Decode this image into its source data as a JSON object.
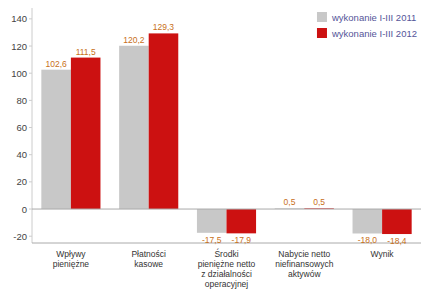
{
  "chart_data": {
    "type": "bar",
    "categories": [
      "Wpływy\npieniężne",
      "Płatności\nkasowe",
      "Środki\npieniężne netto\nz działalności\noperacyjnej",
      "Nabycie netto\nniefinansowych\naktywów",
      "Wynik"
    ],
    "series": [
      {
        "name": "wykonanie I-III 2011",
        "color": "#c8c8c8",
        "values": [
          102.6,
          120.2,
          -17.5,
          0.5,
          -18.0
        ],
        "value_labels": [
          "102,6",
          "120,2",
          "-17,5",
          "0,5",
          "-18,0"
        ]
      },
      {
        "name": "wykonanie I-III 2012",
        "color": "#cc1111",
        "values": [
          111.5,
          129.3,
          -17.9,
          0.5,
          -18.4
        ],
        "value_labels": [
          "111,5",
          "129,3",
          "-17,9",
          "0,5",
          "-18,4"
        ]
      }
    ],
    "ylim": [
      -25,
      148
    ],
    "yticks": [
      -20,
      0,
      20,
      40,
      60,
      80,
      100,
      120,
      140
    ],
    "data_labels": true,
    "grid": false,
    "legend": "upper right"
  }
}
